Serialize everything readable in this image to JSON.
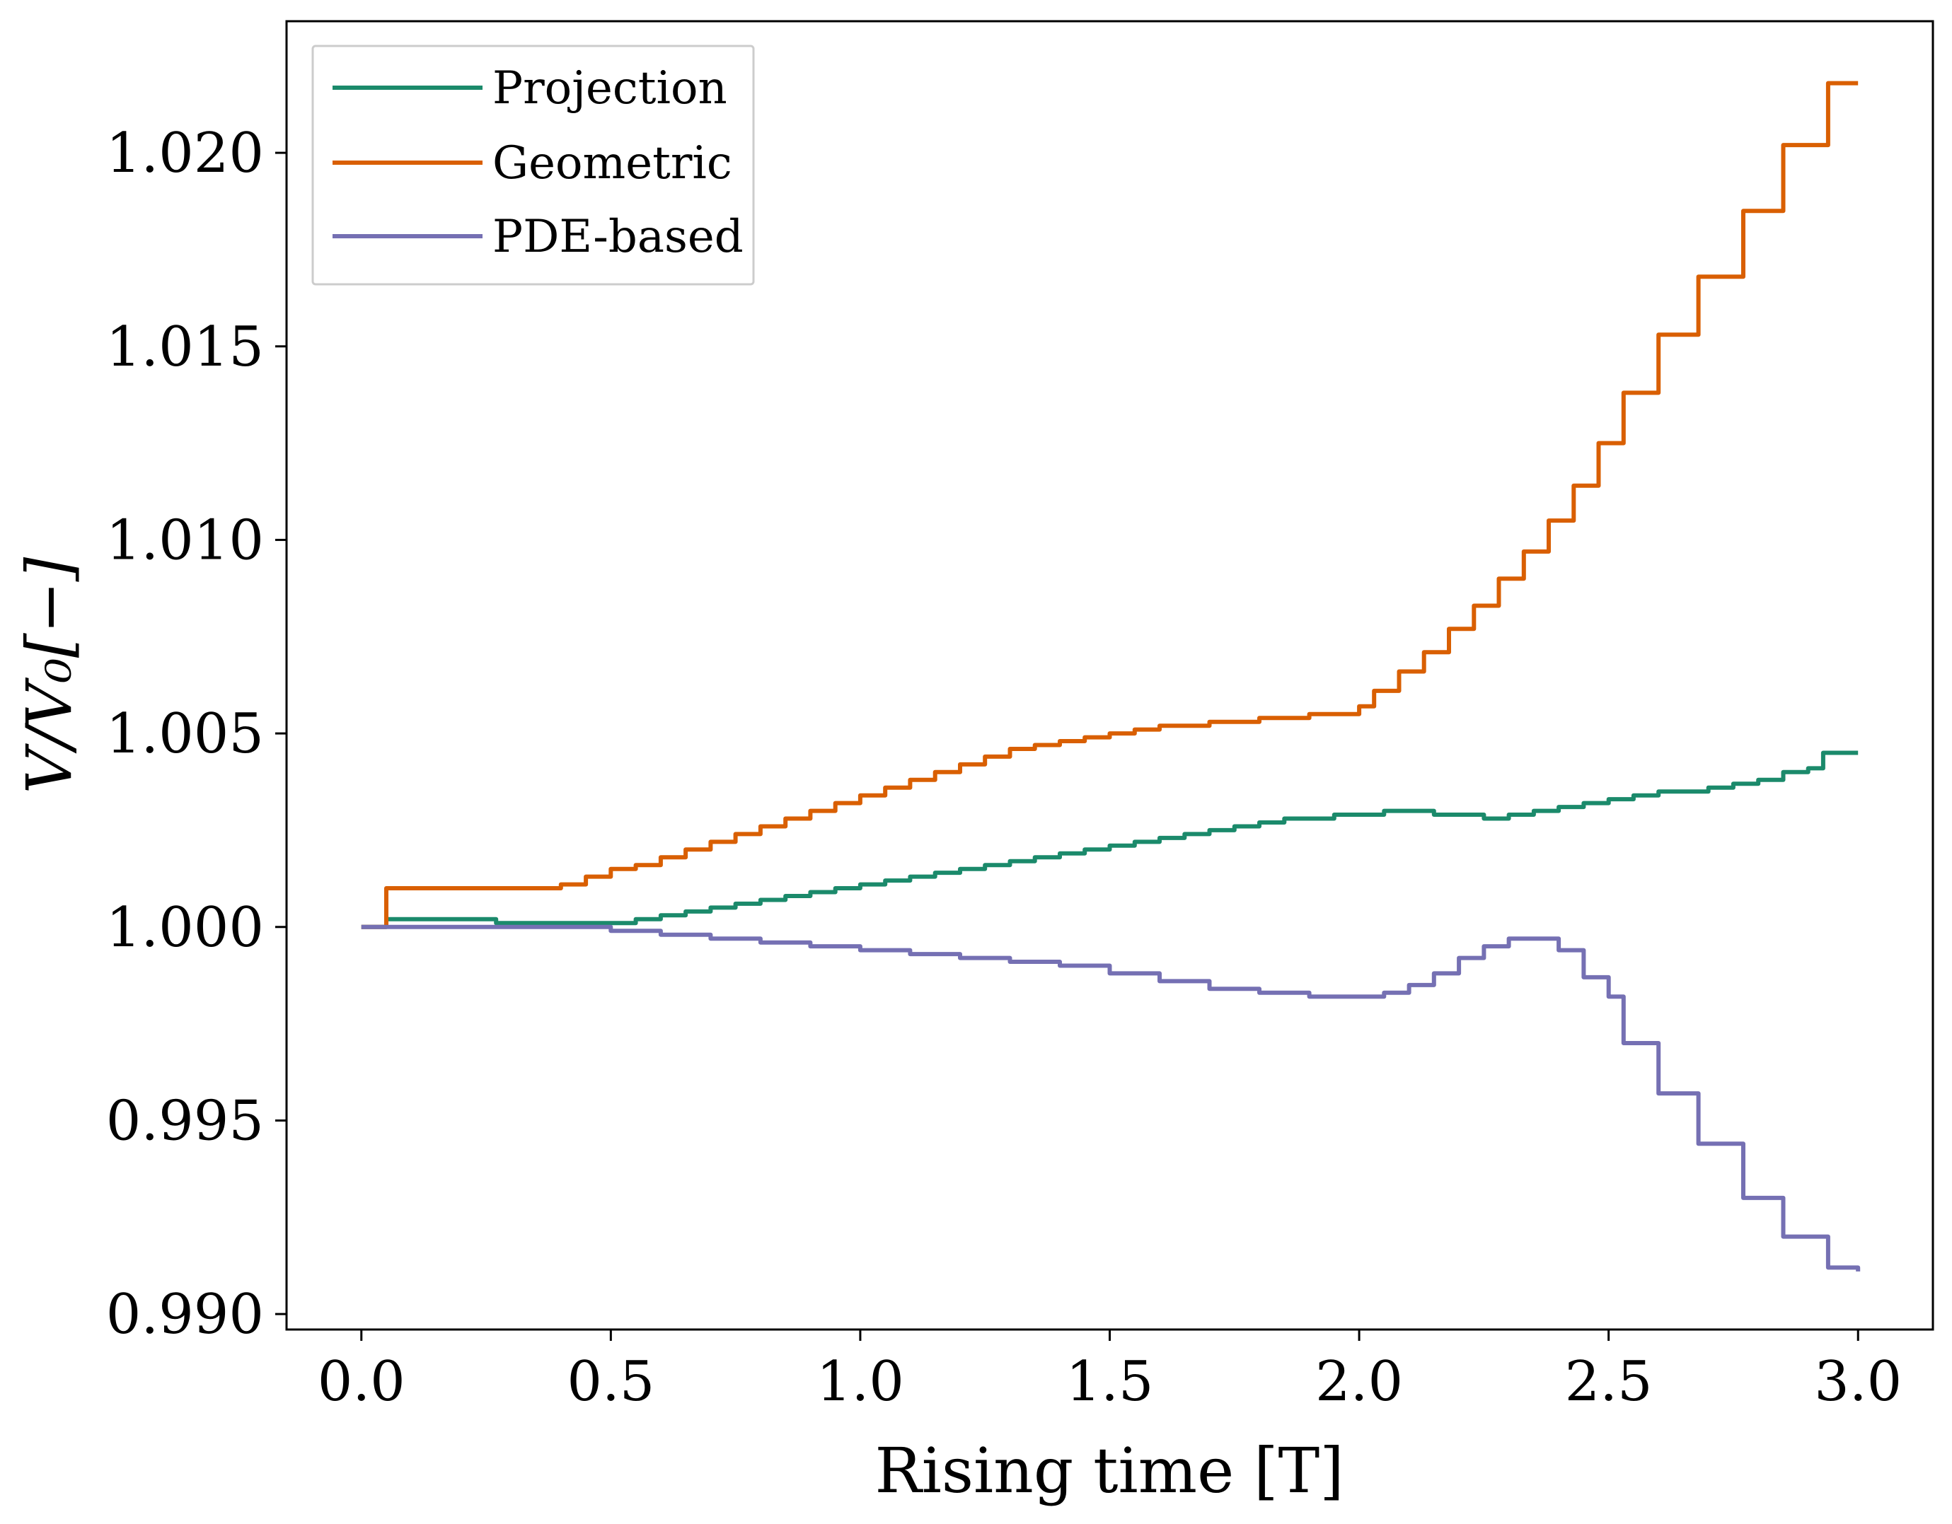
{
  "chart_data": {
    "type": "line",
    "title": "",
    "xlabel": "Rising time [T]",
    "ylabel": "V/V₀[−]",
    "xlim": [
      -0.15,
      3.15
    ],
    "ylim": [
      0.9896,
      1.0234
    ],
    "xticks": [
      0.0,
      0.5,
      1.0,
      1.5,
      2.0,
      2.5,
      3.0
    ],
    "xtick_labels": [
      "0.0",
      "0.5",
      "1.0",
      "1.5",
      "2.0",
      "2.5",
      "3.0"
    ],
    "yticks": [
      0.99,
      0.995,
      1.0,
      1.005,
      1.01,
      1.015,
      1.02
    ],
    "ytick_labels": [
      "0.990",
      "0.995",
      "1.000",
      "1.005",
      "1.010",
      "1.015",
      "1.020"
    ],
    "grid": false,
    "legend_position": "top-left",
    "series": [
      {
        "name": "Projection",
        "color": "#1b8a6b",
        "x": [
          0.0,
          0.04,
          0.05,
          0.1,
          0.2,
          0.27,
          0.3,
          0.4,
          0.45,
          0.5,
          0.55,
          0.6,
          0.65,
          0.7,
          0.75,
          0.8,
          0.85,
          0.9,
          0.95,
          1.0,
          1.05,
          1.1,
          1.15,
          1.2,
          1.25,
          1.3,
          1.35,
          1.4,
          1.45,
          1.5,
          1.55,
          1.6,
          1.65,
          1.7,
          1.75,
          1.8,
          1.85,
          1.9,
          1.95,
          2.0,
          2.05,
          2.1,
          2.15,
          2.2,
          2.25,
          2.3,
          2.35,
          2.4,
          2.45,
          2.5,
          2.55,
          2.6,
          2.65,
          2.7,
          2.75,
          2.8,
          2.85,
          2.9,
          2.93,
          2.95,
          3.0
        ],
        "y": [
          1.0,
          1.0,
          1.0002,
          1.0002,
          1.0002,
          1.0001,
          1.0001,
          1.0001,
          1.0001,
          1.0001,
          1.0002,
          1.0003,
          1.0004,
          1.0005,
          1.0006,
          1.0007,
          1.0008,
          1.0009,
          1.001,
          1.0011,
          1.0012,
          1.0013,
          1.0014,
          1.0015,
          1.0016,
          1.0017,
          1.0018,
          1.0019,
          1.002,
          1.0021,
          1.0022,
          1.0023,
          1.0024,
          1.0025,
          1.0026,
          1.0027,
          1.0028,
          1.0028,
          1.0029,
          1.0029,
          1.003,
          1.003,
          1.0029,
          1.0029,
          1.0028,
          1.0029,
          1.003,
          1.0031,
          1.0032,
          1.0033,
          1.0034,
          1.0035,
          1.0035,
          1.0036,
          1.0037,
          1.0038,
          1.004,
          1.0041,
          1.0045,
          1.0045,
          1.0045
        ]
      },
      {
        "name": "Geometric",
        "color": "#d95f02",
        "x": [
          0.0,
          0.04,
          0.05,
          0.1,
          0.2,
          0.3,
          0.4,
          0.45,
          0.5,
          0.55,
          0.6,
          0.65,
          0.7,
          0.75,
          0.8,
          0.85,
          0.9,
          0.95,
          1.0,
          1.05,
          1.1,
          1.15,
          1.2,
          1.25,
          1.3,
          1.35,
          1.4,
          1.45,
          1.5,
          1.55,
          1.6,
          1.65,
          1.7,
          1.75,
          1.8,
          1.85,
          1.9,
          1.95,
          2.0,
          2.03,
          2.08,
          2.13,
          2.18,
          2.23,
          2.28,
          2.33,
          2.38,
          2.43,
          2.48,
          2.5,
          2.53,
          2.6,
          2.68,
          2.77,
          2.85,
          2.94,
          3.0
        ],
        "y": [
          1.0,
          1.0,
          1.001,
          1.001,
          1.001,
          1.001,
          1.0011,
          1.0013,
          1.0015,
          1.0016,
          1.0018,
          1.002,
          1.0022,
          1.0024,
          1.0026,
          1.0028,
          1.003,
          1.0032,
          1.0034,
          1.0036,
          1.0038,
          1.004,
          1.0042,
          1.0044,
          1.0046,
          1.0047,
          1.0048,
          1.0049,
          1.005,
          1.0051,
          1.0052,
          1.0052,
          1.0053,
          1.0053,
          1.0054,
          1.0054,
          1.0055,
          1.0055,
          1.0057,
          1.0061,
          1.0066,
          1.0071,
          1.0077,
          1.0083,
          1.009,
          1.0097,
          1.0105,
          1.0114,
          1.0125,
          1.0125,
          1.0138,
          1.0153,
          1.0168,
          1.0185,
          1.0202,
          1.0218,
          1.0218
        ]
      },
      {
        "name": "PDE-based",
        "color": "#7570b3",
        "x": [
          0.0,
          0.1,
          0.2,
          0.3,
          0.4,
          0.5,
          0.6,
          0.7,
          0.8,
          0.9,
          1.0,
          1.1,
          1.2,
          1.3,
          1.4,
          1.5,
          1.6,
          1.7,
          1.8,
          1.9,
          2.0,
          2.05,
          2.1,
          2.15,
          2.2,
          2.25,
          2.3,
          2.35,
          2.38,
          2.4,
          2.45,
          2.5,
          2.53,
          2.6,
          2.68,
          2.77,
          2.85,
          2.94,
          3.0
        ],
        "y": [
          1.0,
          1.0,
          1.0,
          1.0,
          1.0,
          0.9999,
          0.9998,
          0.9997,
          0.9996,
          0.9995,
          0.9994,
          0.9993,
          0.9992,
          0.9991,
          0.999,
          0.9988,
          0.9986,
          0.9984,
          0.9983,
          0.9982,
          0.9982,
          0.9983,
          0.9985,
          0.9988,
          0.9992,
          0.9995,
          0.9997,
          0.9997,
          0.9997,
          0.9994,
          0.9987,
          0.9982,
          0.997,
          0.9957,
          0.9944,
          0.993,
          0.992,
          0.9912,
          0.9911
        ]
      }
    ]
  }
}
